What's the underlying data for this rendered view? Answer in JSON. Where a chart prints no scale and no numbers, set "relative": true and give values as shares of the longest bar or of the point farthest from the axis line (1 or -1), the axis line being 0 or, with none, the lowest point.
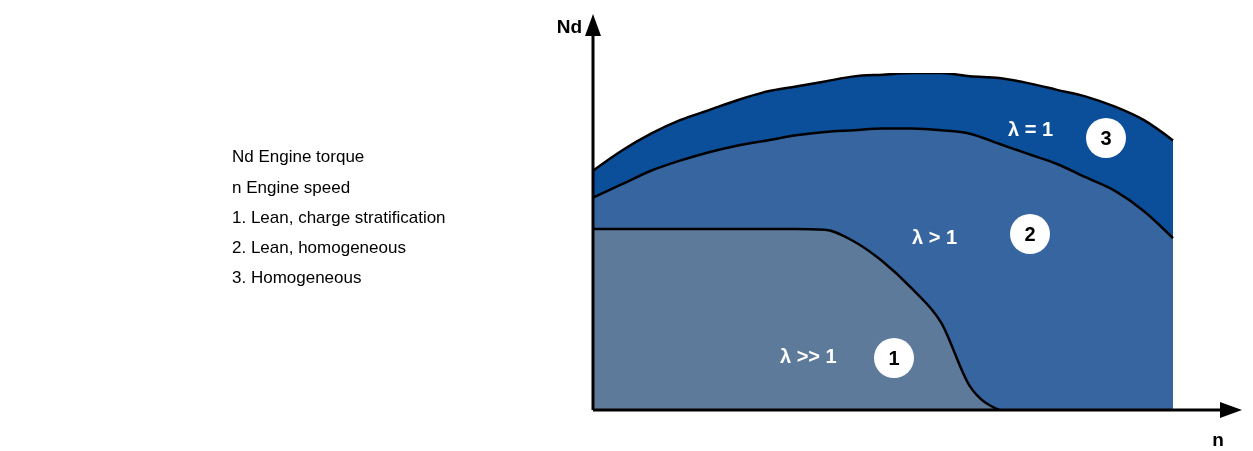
{
  "chart_data": {
    "type": "area",
    "relative": true,
    "xlabel": "n",
    "ylabel": "Nd",
    "categories": [
      null,
      null,
      null,
      null,
      null,
      null,
      null,
      null,
      null,
      null,
      null,
      null,
      null,
      null,
      null,
      null,
      null,
      null,
      null,
      null,
      null
    ],
    "series": [
      {
        "color": "#0b4e9a",
        "values": [
          0.71,
          0.77,
          0.82,
          0.86,
          0.89,
          0.92,
          0.945,
          0.96,
          0.975,
          0.99,
          0.995,
          1,
          1,
          0.99,
          0.985,
          0.97,
          0.95,
          0.93,
          0.9,
          0.86,
          0.8
        ]
      },
      {
        "color": "#3665a0",
        "values": [
          0.63,
          0.67,
          0.71,
          0.74,
          0.765,
          0.785,
          0.8,
          0.815,
          0.825,
          0.83,
          0.835,
          0.835,
          0.83,
          0.82,
          0.79,
          0.76,
          0.73,
          0.69,
          0.65,
          0.59,
          0.51
        ]
      },
      {
        "color": "#5e7a9b",
        "values": [
          0.537,
          0.537,
          0.537,
          0.537,
          0.537,
          0.537,
          0.537,
          0.537,
          0.535,
          0.5,
          0.44,
          0.36,
          0.26,
          0.07,
          0,
          null,
          null,
          null,
          null,
          null,
          null
        ]
      }
    ],
    "annotations": [
      "Nd Engine torque",
      "n Engine speed",
      "1. Lean, charge stratification",
      "2. Lean, homogeneous",
      "3. Homogeneous",
      "λ = 1",
      "3",
      "λ > 1",
      "2",
      "λ >> 1",
      "1"
    ],
    "line_style": "solid"
  }
}
